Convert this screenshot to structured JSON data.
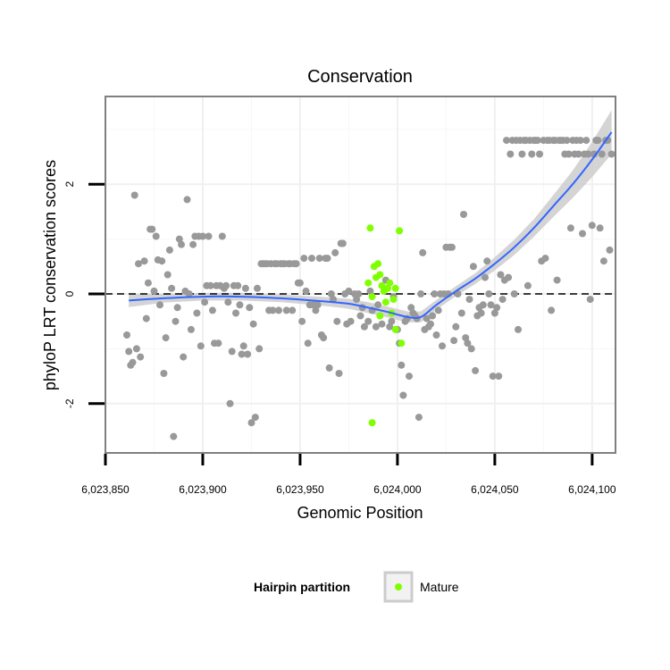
{
  "chart_data": {
    "type": "scatter",
    "title": "Conservation",
    "xlabel": "Genomic Position",
    "ylabel": "phyloP LRT conservation scores",
    "xlim": [
      6023850,
      6024112
    ],
    "ylim": [
      -2.9,
      3.6
    ],
    "xticks": [
      6023850,
      6023900,
      6023950,
      6024000,
      6024050,
      6024100
    ],
    "xtick_labels": [
      "6,023,850",
      "6,023,900",
      "6,023,950",
      "6,024,000",
      "6,024,050",
      "6,024,100"
    ],
    "yticks": [
      -2,
      0,
      2
    ],
    "ytick_labels": [
      "-2",
      "0",
      "2"
    ],
    "grid": true,
    "reference_line": {
      "y": 0,
      "style": "dashed"
    },
    "legend": {
      "title": "Hairpin partition",
      "position": "bottom",
      "entries": [
        {
          "label": "Mature",
          "color": "#7fff00"
        }
      ]
    },
    "colors": {
      "other": "#999999",
      "mature": "#7fff00",
      "smooth": "#3366ff",
      "band": "#cccccc"
    },
    "series": [
      {
        "color": "#999999",
        "points": [
          [
            6023861,
            -0.75
          ],
          [
            6023862,
            -1.05
          ],
          [
            6023863,
            -1.3
          ],
          [
            6023864,
            -1.25
          ],
          [
            6023865,
            1.8
          ],
          [
            6023866,
            -1.0
          ],
          [
            6023867,
            0.55
          ],
          [
            6023868,
            -1.15
          ],
          [
            6023870,
            0.6
          ],
          [
            6023871,
            -0.45
          ],
          [
            6023872,
            0.2
          ],
          [
            6023873,
            1.18
          ],
          [
            6023874,
            1.18
          ],
          [
            6023875,
            0.05
          ],
          [
            6023876,
            1.05
          ],
          [
            6023877,
            0.62
          ],
          [
            6023878,
            -0.2
          ],
          [
            6023879,
            0.6
          ],
          [
            6023880,
            -1.45
          ],
          [
            6023881,
            -0.8
          ],
          [
            6023882,
            0.35
          ],
          [
            6023883,
            0.8
          ],
          [
            6023884,
            0.1
          ],
          [
            6023885,
            -2.6
          ],
          [
            6023886,
            -0.5
          ],
          [
            6023887,
            -0.25
          ],
          [
            6023888,
            1.0
          ],
          [
            6023889,
            0.9
          ],
          [
            6023890,
            -1.15
          ],
          [
            6023891,
            0.05
          ],
          [
            6023892,
            1.72
          ],
          [
            6023893,
            0.0
          ],
          [
            6023894,
            -0.65
          ],
          [
            6023895,
            0.9
          ],
          [
            6023896,
            1.05
          ],
          [
            6023897,
            -0.35
          ],
          [
            6023898,
            1.05
          ],
          [
            6023899,
            -0.95
          ],
          [
            6023900,
            1.05
          ],
          [
            6023901,
            -0.15
          ],
          [
            6023902,
            0.15
          ],
          [
            6023903,
            1.05
          ],
          [
            6023904,
            0.15
          ],
          [
            6023905,
            -0.3
          ],
          [
            6023906,
            -0.9
          ],
          [
            6023907,
            0.15
          ],
          [
            6023908,
            -0.9
          ],
          [
            6023909,
            0.15
          ],
          [
            6023910,
            1.05
          ],
          [
            6023911,
            0.1
          ],
          [
            6023912,
            0.15
          ],
          [
            6023913,
            -0.15
          ],
          [
            6023914,
            -2.0
          ],
          [
            6023915,
            -1.05
          ],
          [
            6023916,
            0.15
          ],
          [
            6023917,
            -0.35
          ],
          [
            6023918,
            0.15
          ],
          [
            6023919,
            -0.2
          ],
          [
            6023920,
            -1.1
          ],
          [
            6023921,
            -0.95
          ],
          [
            6023922,
            0.1
          ],
          [
            6023923,
            -1.1
          ],
          [
            6023924,
            -0.25
          ],
          [
            6023925,
            -2.35
          ],
          [
            6023926,
            -0.55
          ],
          [
            6023927,
            -2.25
          ],
          [
            6023928,
            0.1
          ],
          [
            6023929,
            -1.0
          ],
          [
            6023930,
            0.55
          ],
          [
            6023931,
            0.55
          ],
          [
            6023932,
            0.55
          ],
          [
            6023933,
            0.55
          ],
          [
            6023934,
            -0.3
          ],
          [
            6023935,
            0.55
          ],
          [
            6023936,
            -0.3
          ],
          [
            6023937,
            0.55
          ],
          [
            6023938,
            0.55
          ],
          [
            6023939,
            -0.3
          ],
          [
            6023940,
            0.55
          ],
          [
            6023941,
            0.55
          ],
          [
            6023942,
            0.55
          ],
          [
            6023943,
            -0.3
          ],
          [
            6023944,
            0.55
          ],
          [
            6023945,
            0.55
          ],
          [
            6023946,
            -0.3
          ],
          [
            6023947,
            0.55
          ],
          [
            6023948,
            0.55
          ],
          [
            6023949,
            0.2
          ],
          [
            6023950,
            0.2
          ],
          [
            6023951,
            -0.5
          ],
          [
            6023952,
            0.65
          ],
          [
            6023953,
            0.05
          ],
          [
            6023954,
            -0.9
          ],
          [
            6023955,
            -0.2
          ],
          [
            6023956,
            0.65
          ],
          [
            6023957,
            -0.2
          ],
          [
            6023958,
            -0.3
          ],
          [
            6023959,
            -0.2
          ],
          [
            6023960,
            0.65
          ],
          [
            6023961,
            -0.75
          ],
          [
            6023962,
            -0.8
          ],
          [
            6023963,
            0.65
          ],
          [
            6023964,
            0.65
          ],
          [
            6023965,
            -1.35
          ],
          [
            6023966,
            0.0
          ],
          [
            6023967,
            -0.1
          ],
          [
            6023968,
            0.75
          ],
          [
            6023969,
            -0.5
          ],
          [
            6023970,
            -1.45
          ],
          [
            6023971,
            0.92
          ],
          [
            6023972,
            0.92
          ],
          [
            6023973,
            0.0
          ],
          [
            6023974,
            -0.55
          ],
          [
            6023975,
            0.05
          ],
          [
            6023976,
            -0.5
          ],
          [
            6023978,
            0.0
          ],
          [
            6023979,
            -0.1
          ],
          [
            6023980,
            0.0
          ],
          [
            6023981,
            -0.4
          ],
          [
            6023982,
            -0.25
          ],
          [
            6023983,
            -0.6
          ],
          [
            6023985,
            -0.5
          ],
          [
            6023986,
            0.05
          ],
          [
            6023987,
            -0.3
          ],
          [
            6023989,
            -0.6
          ],
          [
            6023990,
            -0.2
          ],
          [
            6023992,
            -0.55
          ],
          [
            6023994,
            0.25
          ],
          [
            6023996,
            -0.6
          ],
          [
            6023997,
            -0.5
          ],
          [
            6023998,
            -0.05
          ],
          [
            6024000,
            -0.65
          ],
          [
            6024001,
            -0.9
          ],
          [
            6024002,
            -1.3
          ],
          [
            6024003,
            -1.85
          ],
          [
            6024004,
            -0.5
          ],
          [
            6024005,
            -0.45
          ],
          [
            6024006,
            -1.5
          ],
          [
            6024007,
            -0.25
          ],
          [
            6024008,
            -0.35
          ],
          [
            6024009,
            -0.4
          ],
          [
            6024010,
            -0.45
          ],
          [
            6024011,
            -2.25
          ],
          [
            6024012,
            0.0
          ],
          [
            6024013,
            0.75
          ],
          [
            6024014,
            -0.65
          ],
          [
            6024015,
            -0.45
          ],
          [
            6024016,
            -0.6
          ],
          [
            6024017,
            -0.55
          ],
          [
            6024018,
            -0.4
          ],
          [
            6024019,
            0.0
          ],
          [
            6024020,
            -0.75
          ],
          [
            6024021,
            -0.3
          ],
          [
            6024022,
            0.0
          ],
          [
            6024023,
            -0.95
          ],
          [
            6024024,
            0.0
          ],
          [
            6024025,
            0.85
          ],
          [
            6024026,
            0.0
          ],
          [
            6024027,
            0.85
          ],
          [
            6024028,
            0.85
          ],
          [
            6024029,
            -0.85
          ],
          [
            6024030,
            -0.6
          ],
          [
            6024031,
            0.0
          ],
          [
            6024033,
            -0.35
          ],
          [
            6024034,
            1.45
          ],
          [
            6024035,
            -0.8
          ],
          [
            6024036,
            -0.9
          ],
          [
            6024037,
            -0.1
          ],
          [
            6024038,
            -1.0
          ],
          [
            6024039,
            0.5
          ],
          [
            6024040,
            -1.4
          ],
          [
            6024041,
            -0.4
          ],
          [
            6024042,
            -0.25
          ],
          [
            6024043,
            -0.35
          ],
          [
            6024044,
            -0.2
          ],
          [
            6024045,
            0.3
          ],
          [
            6024046,
            0.6
          ],
          [
            6024047,
            0.0
          ],
          [
            6024048,
            -0.2
          ],
          [
            6024049,
            -1.5
          ],
          [
            6024050,
            -0.35
          ],
          [
            6024051,
            -0.25
          ],
          [
            6024052,
            -1.5
          ],
          [
            6024053,
            0.35
          ],
          [
            6024054,
            -0.1
          ],
          [
            6024055,
            0.25
          ],
          [
            6024056,
            2.8
          ],
          [
            6024057,
            0.3
          ],
          [
            6024058,
            2.55
          ],
          [
            6024059,
            2.8
          ],
          [
            6024060,
            0.0
          ],
          [
            6024061,
            2.8
          ],
          [
            6024062,
            -0.65
          ],
          [
            6024063,
            2.8
          ],
          [
            6024064,
            2.55
          ],
          [
            6024065,
            2.8
          ],
          [
            6024066,
            2.8
          ],
          [
            6024067,
            0.15
          ],
          [
            6024068,
            2.8
          ],
          [
            6024069,
            2.55
          ],
          [
            6024070,
            2.8
          ],
          [
            6024071,
            2.8
          ],
          [
            6024072,
            2.8
          ],
          [
            6024073,
            2.55
          ],
          [
            6024074,
            0.6
          ],
          [
            6024075,
            2.8
          ],
          [
            6024076,
            0.65
          ],
          [
            6024077,
            2.8
          ],
          [
            6024078,
            2.8
          ],
          [
            6024079,
            -0.3
          ],
          [
            6024080,
            2.8
          ],
          [
            6024081,
            2.8
          ],
          [
            6024082,
            0.25
          ],
          [
            6024083,
            2.8
          ],
          [
            6024084,
            2.8
          ],
          [
            6024085,
            2.8
          ],
          [
            6024086,
            2.55
          ],
          [
            6024087,
            2.8
          ],
          [
            6024088,
            2.55
          ],
          [
            6024089,
            1.2
          ],
          [
            6024090,
            2.8
          ],
          [
            6024091,
            2.55
          ],
          [
            6024092,
            2.8
          ],
          [
            6024093,
            2.55
          ],
          [
            6024094,
            2.8
          ],
          [
            6024095,
            1.1
          ],
          [
            6024096,
            2.55
          ],
          [
            6024097,
            2.8
          ],
          [
            6024098,
            2.55
          ],
          [
            6024099,
            -0.1
          ],
          [
            6024100,
            1.25
          ],
          [
            6024101,
            2.55
          ],
          [
            6024102,
            2.8
          ],
          [
            6024103,
            2.8
          ],
          [
            6024104,
            1.2
          ],
          [
            6024105,
            2.55
          ],
          [
            6024106,
            0.6
          ],
          [
            6024107,
            2.8
          ],
          [
            6024108,
            2.8
          ],
          [
            6024109,
            0.8
          ],
          [
            6024110,
            2.55
          ]
        ]
      },
      {
        "name": "Mature",
        "color": "#7fff00",
        "points": [
          [
            6023986,
            1.2
          ],
          [
            6023985,
            0.2
          ],
          [
            6023987,
            -0.05
          ],
          [
            6023988,
            0.5
          ],
          [
            6023989,
            0.3
          ],
          [
            6023990,
            0.55
          ],
          [
            6023991,
            -0.4
          ],
          [
            6023992,
            0.15
          ],
          [
            6023993,
            0.05
          ],
          [
            6023994,
            -0.15
          ],
          [
            6023995,
            0.1
          ],
          [
            6023996,
            0.2
          ],
          [
            6023997,
            -0.35
          ],
          [
            6023998,
            -0.1
          ],
          [
            6023999,
            0.1
          ],
          [
            6024001,
            1.15
          ],
          [
            6024002,
            -0.9
          ],
          [
            6023987,
            -2.35
          ],
          [
            6023991,
            0.35
          ],
          [
            6023999,
            -0.65
          ]
        ]
      }
    ],
    "smooth": {
      "x": [
        6023862,
        6023880,
        6023900,
        6023920,
        6023940,
        6023960,
        6023975,
        6023985,
        6023995,
        6024005,
        6024012,
        6024020,
        6024030,
        6024040,
        6024050,
        6024060,
        6024070,
        6024080,
        6024090,
        6024100,
        6024110
      ],
      "y": [
        -0.12,
        -0.08,
        -0.05,
        -0.05,
        -0.08,
        -0.13,
        -0.18,
        -0.25,
        -0.33,
        -0.42,
        -0.42,
        -0.2,
        0.05,
        0.28,
        0.55,
        0.85,
        1.2,
        1.6,
        2.0,
        2.45,
        2.95
      ],
      "se": [
        0.12,
        0.08,
        0.07,
        0.07,
        0.07,
        0.08,
        0.09,
        0.1,
        0.1,
        0.1,
        0.1,
        0.09,
        0.09,
        0.1,
        0.12,
        0.14,
        0.16,
        0.2,
        0.25,
        0.32,
        0.4
      ]
    }
  }
}
